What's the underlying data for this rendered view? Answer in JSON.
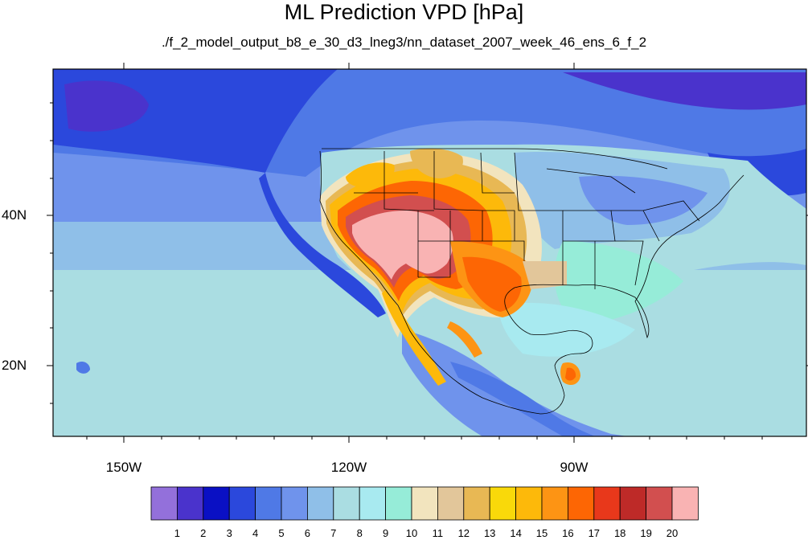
{
  "figure": {
    "title": "ML Prediction VPD [hPa]",
    "subtitle": "./f_2_model_output_b8_e_30_d3_lneg3/nn_dataset_2007_week_46_ens_6_f_2"
  },
  "map": {
    "lon_labels": [
      "150W",
      "120W",
      "90W"
    ],
    "lat_labels": [
      "40N",
      "20N"
    ]
  },
  "colorbar": {
    "colors": [
      "#9370db",
      "#4a33cc",
      "#0a10c4",
      "#2b48dc",
      "#4f79e6",
      "#6f93ec",
      "#8fbfe8",
      "#aadde2",
      "#a8eaf0",
      "#96ecd8",
      "#f2e4be",
      "#e2c69a",
      "#e8b854",
      "#f9d90a",
      "#fdb90a",
      "#fd9414",
      "#fd6604",
      "#e8381b",
      "#be2a28",
      "#d24f4f",
      "#f9b3b3"
    ],
    "labels": [
      "1",
      "2",
      "3",
      "4",
      "5",
      "6",
      "7",
      "8",
      "9",
      "10",
      "11",
      "12",
      "13",
      "14",
      "15",
      "16",
      "17",
      "18",
      "19",
      "20"
    ]
  }
}
